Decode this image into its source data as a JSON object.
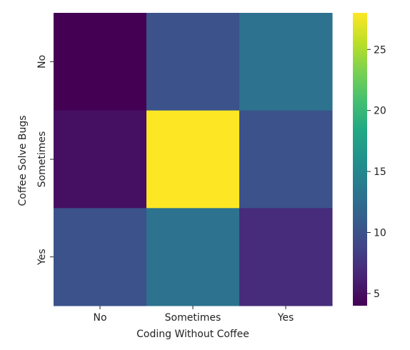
{
  "chart_data": {
    "type": "heatmap",
    "title": "",
    "xlabel": "Coding Without Coffee",
    "ylabel": "Coffee Solve Bugs",
    "x_categories": [
      "No",
      "Sometimes",
      "Yes"
    ],
    "y_categories": [
      "No",
      "Sometimes",
      "Yes"
    ],
    "values": [
      [
        4,
        10,
        13
      ],
      [
        5,
        28,
        10
      ],
      [
        10,
        13,
        7
      ]
    ],
    "colorbar": {
      "colormap": "viridis",
      "range": [
        4,
        28
      ],
      "ticks": [
        5,
        10,
        15,
        20,
        25
      ],
      "tick_labels": [
        "5",
        "10",
        "15",
        "20",
        "25"
      ]
    },
    "grid": false,
    "legend": "colorbar-right"
  }
}
